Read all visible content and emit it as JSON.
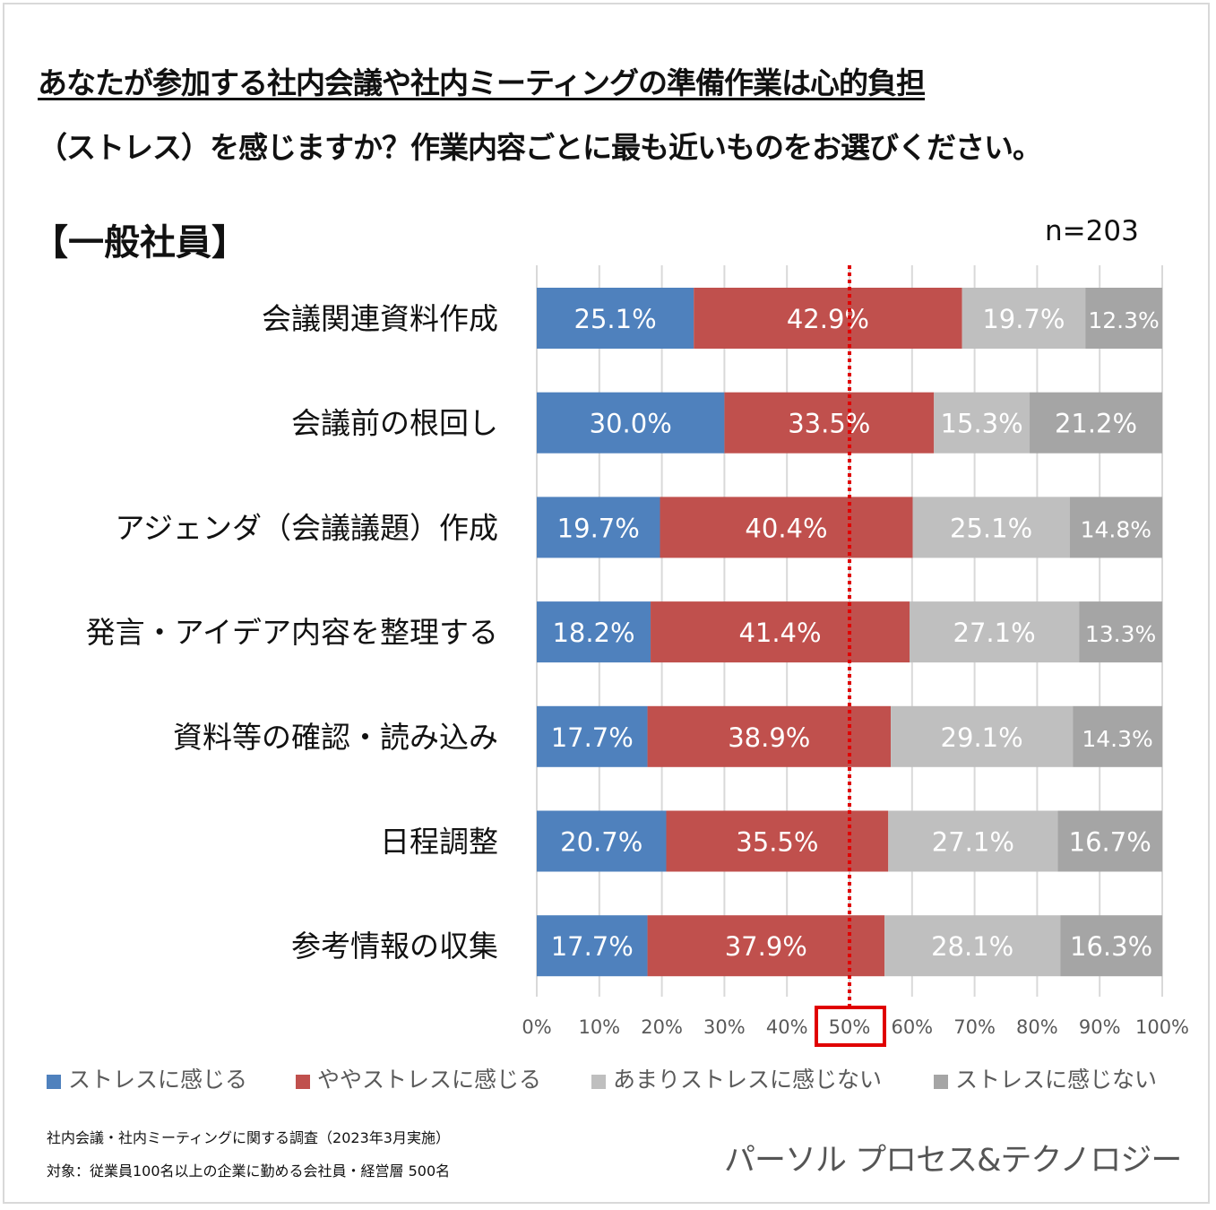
{
  "title_line1": "あなたが参加する社内会議や社内ミーティングの準備作業は心的負担",
  "title_line2": "（ストレス）を感じますか？作業内容ごとに最も近いものをお選びください。",
  "subtitle": "【一般社員】",
  "sample_size": "n=203",
  "chart_data": {
    "type": "bar",
    "orientation": "horizontal",
    "stacked": true,
    "percent_stacked": true,
    "categories": [
      "会議関連資料作成",
      "会議前の根回し",
      "アジェンダ（会議議題）作成",
      "発言・アイデア内容を整理する",
      "資料等の確認・読み込み",
      "日程調整",
      "参考情報の収集"
    ],
    "series": [
      {
        "name": "ストレスに感じる",
        "color": "#4f81bd",
        "values": [
          25.1,
          30.0,
          19.7,
          18.2,
          17.7,
          20.7,
          17.7
        ]
      },
      {
        "name": "ややストレスに感じる",
        "color": "#c0504d",
        "values": [
          42.9,
          33.5,
          40.4,
          41.4,
          38.9,
          35.5,
          37.9
        ]
      },
      {
        "name": "あまりストレスに感じない",
        "color": "#bfbfbf",
        "values": [
          19.7,
          15.3,
          25.1,
          27.1,
          29.1,
          27.1,
          28.1
        ]
      },
      {
        "name": "ストレスに感じない",
        "color": "#a5a5a5",
        "values": [
          12.3,
          21.2,
          14.8,
          13.3,
          14.3,
          16.7,
          16.3
        ]
      }
    ],
    "xlim": [
      0,
      100
    ],
    "xticks": [
      "0%",
      "10%",
      "20%",
      "30%",
      "40%",
      "50%",
      "60%",
      "70%",
      "80%",
      "90%",
      "100%"
    ],
    "highlighted_tick": "50%",
    "reference_line": {
      "value": 50,
      "style": "dotted",
      "color": "#e00000"
    },
    "grid": true,
    "legend": "bottom"
  },
  "footer": {
    "survey": "社内会議・社内ミーティングに関する調査（2023年3月実施）",
    "target": "対象：従業員100名以上の企業に勤める会社員・経営層 500名",
    "logo": "パーソル プロセス&テクノロジー"
  }
}
